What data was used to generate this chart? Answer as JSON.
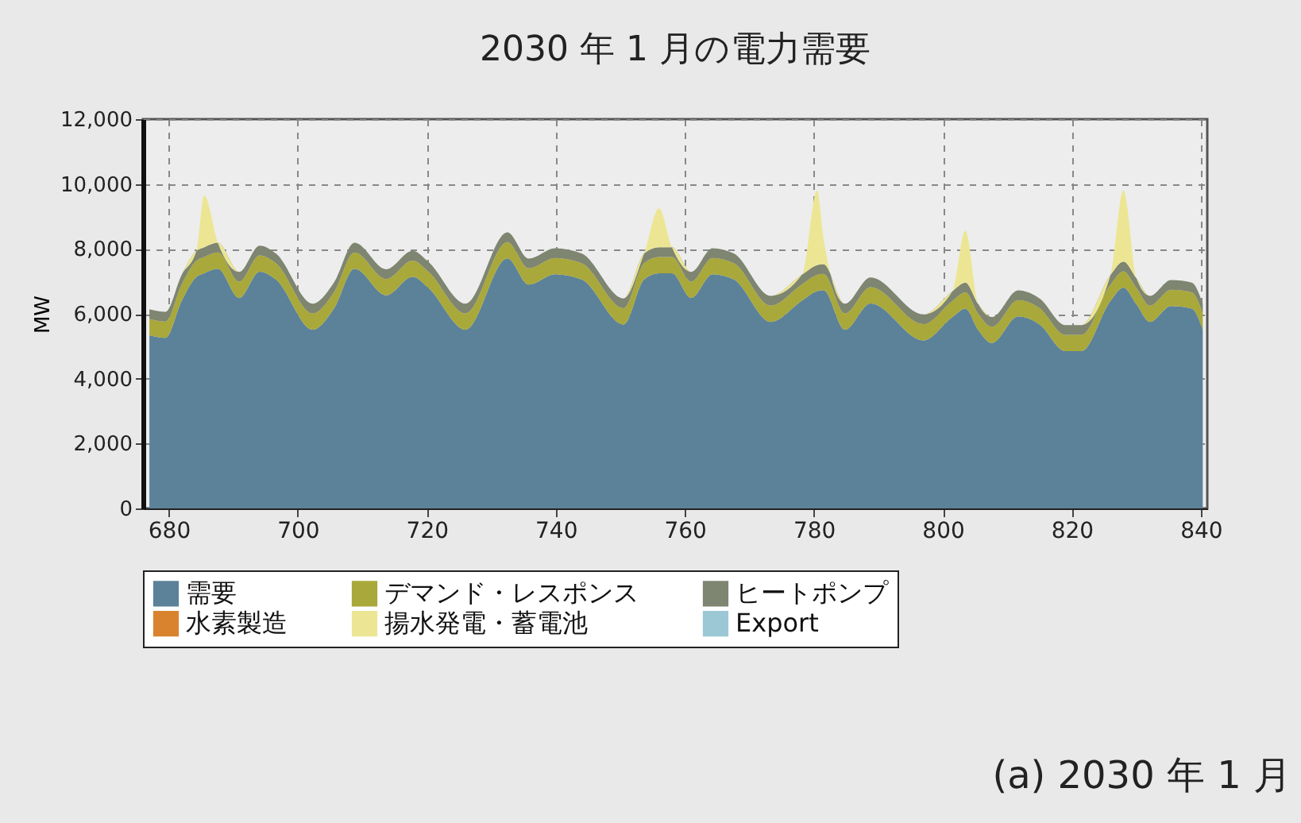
{
  "chart_data": {
    "type": "area",
    "stacked": true,
    "title": "2030 年 1 月の電力需要",
    "ylabel": "MW",
    "x": [
      677,
      679.5,
      682,
      684.3,
      685.5,
      687.6,
      690.9,
      694.1,
      696.6,
      702.3,
      705.6,
      708.8,
      713.7,
      717.8,
      720.2,
      726,
      732.5,
      735.8,
      739.9,
      744,
      750.5,
      753.7,
      756,
      758,
      761,
      764.3,
      767.6,
      773.3,
      778.2,
      780.5,
      781.5,
      784.8,
      788.8,
      797,
      801.5,
      803.5,
      805.5,
      807.6,
      811.7,
      815,
      819,
      821.5,
      826,
      828,
      830,
      832.1,
      835.4,
      838.6,
      840.3
    ],
    "series": [
      {
        "name": "需要",
        "color": "#5b8299",
        "values": [
          5340,
          5260,
          6400,
          7140,
          7250,
          7390,
          6490,
          7300,
          7060,
          5510,
          6160,
          7390,
          6570,
          7140,
          6810,
          5510,
          7710,
          6900,
          7220,
          7060,
          5670,
          7060,
          7250,
          7250,
          6490,
          7220,
          7060,
          5750,
          6410,
          6700,
          6730,
          5510,
          6320,
          5180,
          5900,
          6160,
          5500,
          5100,
          5920,
          5670,
          4850,
          4850,
          6400,
          6810,
          6300,
          5750,
          6240,
          6160,
          5510
        ]
      },
      {
        "name": "デマンド・レスポンス",
        "color": "#a9a83a",
        "values": [
          500,
          500,
          500,
          500,
          500,
          500,
          500,
          500,
          500,
          500,
          500,
          500,
          500,
          500,
          500,
          500,
          500,
          500,
          500,
          500,
          500,
          500,
          500,
          500,
          500,
          500,
          500,
          500,
          500,
          500,
          500,
          500,
          500,
          500,
          500,
          500,
          500,
          500,
          500,
          500,
          500,
          500,
          500,
          500,
          500,
          500,
          500,
          500,
          500
        ]
      },
      {
        "name": "ヒートポンプ",
        "color": "#7e8570",
        "values": [
          300,
          300,
          300,
          300,
          300,
          300,
          300,
          300,
          300,
          300,
          300,
          300,
          300,
          300,
          300,
          300,
          300,
          300,
          300,
          300,
          300,
          300,
          300,
          300,
          300,
          300,
          300,
          300,
          300,
          300,
          300,
          300,
          300,
          300,
          300,
          300,
          300,
          300,
          300,
          300,
          300,
          300,
          300,
          300,
          300,
          300,
          300,
          300,
          300
        ]
      },
      {
        "name": "水素製造",
        "color": "#d9832e",
        "values": [
          null,
          null,
          null,
          null,
          null,
          null,
          null,
          null,
          null,
          null,
          null,
          null,
          null,
          null,
          null,
          null,
          null,
          null,
          null,
          null,
          null,
          null,
          null,
          null,
          null,
          null,
          null,
          null,
          null,
          null,
          null,
          null,
          null,
          null,
          null,
          null,
          null,
          null,
          null,
          null,
          null,
          null,
          null,
          null,
          null,
          null,
          null,
          null,
          null
        ]
      },
      {
        "name": "揚水発電・蓄電池",
        "color": "#ece694",
        "values": [
          0,
          0,
          0,
          0,
          1600,
          0,
          0,
          0,
          0,
          0,
          0,
          0,
          0,
          0,
          0,
          0,
          0,
          0,
          0,
          0,
          0,
          0,
          1200,
          0,
          0,
          0,
          0,
          0,
          0,
          2300,
          800,
          0,
          0,
          0,
          0,
          1600,
          0,
          0,
          0,
          0,
          0,
          0,
          0,
          2200,
          0,
          0,
          0,
          0,
          0
        ]
      },
      {
        "name": "Export",
        "color": "#9cc7d4",
        "values": [
          null,
          null,
          null,
          null,
          null,
          null,
          null,
          null,
          null,
          null,
          null,
          null,
          null,
          null,
          null,
          null,
          null,
          null,
          null,
          null,
          null,
          null,
          null,
          null,
          null,
          null,
          null,
          null,
          null,
          null,
          null,
          null,
          null,
          null,
          null,
          null,
          null,
          null,
          null,
          null,
          null,
          null,
          null,
          null,
          null,
          null,
          null,
          null,
          null
        ]
      }
    ],
    "xlim": [
      676,
      841
    ],
    "xticks": [
      680,
      700,
      720,
      740,
      760,
      780,
      800,
      820,
      840
    ],
    "ylim": [
      0,
      12000
    ],
    "yticks": [
      0,
      {
        "value": 2000,
        "label": "2,000"
      },
      {
        "value": 4000,
        "label": "4,000"
      },
      {
        "value": 6000,
        "label": "6,000"
      },
      {
        "value": 8000,
        "label": "8,000"
      },
      {
        "value": 10000,
        "label": "10,000"
      },
      {
        "value": 12000,
        "label": "12,000"
      }
    ],
    "grid": true,
    "legend": "bottom",
    "annotations": [
      "(a) 2030 年 1 月"
    ]
  }
}
